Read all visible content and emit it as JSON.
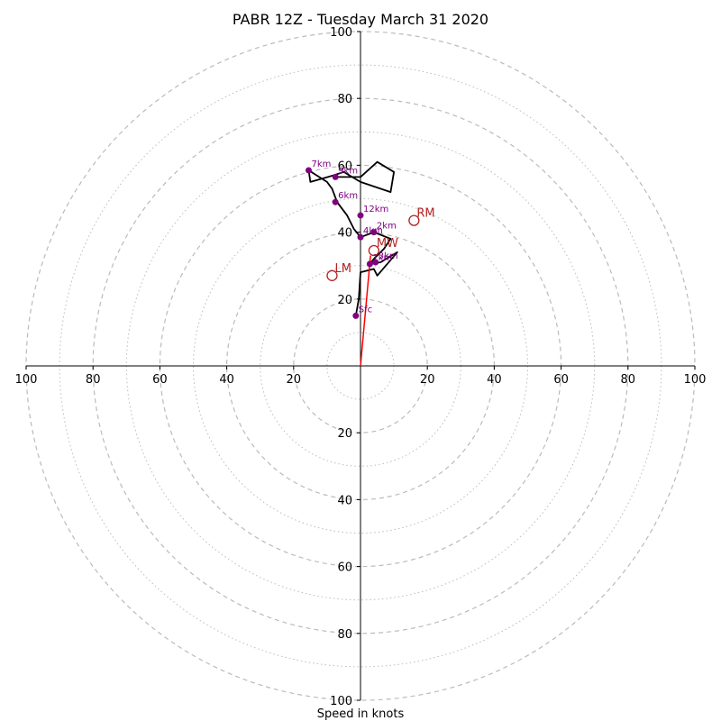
{
  "chart_data": {
    "type": "hodograph",
    "title": "PABR 12Z - Tuesday March 31 2020",
    "xlabel": "Speed in knots",
    "range": [
      -100,
      100
    ],
    "rings_dashed": [
      20,
      40,
      60,
      80,
      100
    ],
    "rings_dotted": [
      10,
      30,
      50,
      70,
      90
    ],
    "tick_labels": {
      "left": [
        "100",
        "80",
        "60",
        "40",
        "20"
      ],
      "right": [
        "20",
        "40",
        "60",
        "80",
        "100"
      ],
      "up": [
        "20",
        "40",
        "60",
        "80",
        "100"
      ],
      "down": [
        "20",
        "40",
        "60",
        "80",
        "100"
      ]
    },
    "colors": {
      "trace": "#000000",
      "height_markers": "#800080",
      "motion": "#b22222",
      "mean_wind_line": "#ff0000",
      "rings": "#bbbbbb"
    },
    "trace": [
      [
        -1.4,
        15
      ],
      [
        -0.5,
        20
      ],
      [
        0,
        28
      ],
      [
        4,
        29
      ],
      [
        5,
        27
      ],
      [
        11,
        34
      ],
      [
        6,
        31
      ],
      [
        2.8,
        30.5
      ],
      [
        4,
        32
      ],
      [
        7,
        35
      ],
      [
        9,
        38
      ],
      [
        4,
        40
      ],
      [
        0,
        38.5
      ],
      [
        -2,
        41
      ],
      [
        -4,
        45
      ],
      [
        -7,
        49
      ],
      [
        -8.5,
        53
      ],
      [
        -10,
        55
      ],
      [
        -15.5,
        58.5
      ],
      [
        -15,
        55
      ],
      [
        -8,
        57
      ],
      [
        -5,
        58
      ],
      [
        0,
        55
      ],
      [
        9,
        52
      ],
      [
        10,
        58
      ],
      [
        5,
        61
      ],
      [
        0,
        56.5
      ],
      [
        -7.5,
        56.5
      ]
    ],
    "height_markers": [
      {
        "label": "Sfc",
        "u": -1.4,
        "v": 15
      },
      {
        "label": "1km",
        "u": 2.8,
        "v": 30.5
      },
      {
        "label": "3km",
        "u": 4.5,
        "v": 31
      },
      {
        "label": "2km",
        "u": 4,
        "v": 40
      },
      {
        "label": "4km",
        "u": 0,
        "v": 38.5
      },
      {
        "label": "12km",
        "u": 0,
        "v": 45
      },
      {
        "label": "6km",
        "u": -7.5,
        "v": 49
      },
      {
        "label": "7km",
        "u": -15.5,
        "v": 58.5
      },
      {
        "label": "9km",
        "u": -7.5,
        "v": 56.5
      }
    ],
    "storm_motions": [
      {
        "label": "RM",
        "u": 16,
        "v": 43.5
      },
      {
        "label": "LM",
        "u": -8.5,
        "v": 27
      },
      {
        "label": "MW",
        "u": 4,
        "v": 34.5
      }
    ],
    "mean_wind_vector": {
      "u": 3,
      "v": 33
    }
  }
}
